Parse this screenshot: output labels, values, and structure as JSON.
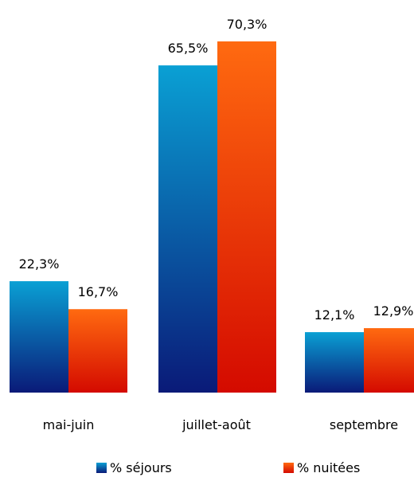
{
  "chart_data": {
    "type": "bar",
    "categories": [
      "mai-juin",
      "juillet-août",
      "septembre"
    ],
    "series": [
      {
        "name": "% séjours",
        "values": [
          22.3,
          65.5,
          12.1
        ],
        "labels": [
          "22,3%",
          "65,5%",
          "12,1%"
        ],
        "color_top": "#0aa0d4",
        "color_bottom": "#0a1a78"
      },
      {
        "name": "% nuitées",
        "values": [
          16.7,
          70.3,
          12.9
        ],
        "labels": [
          "16,7%",
          "70,3%",
          "12,9%"
        ],
        "color_top": "#ff6a10",
        "color_bottom": "#d40a00"
      }
    ],
    "title": "",
    "xlabel": "",
    "ylabel": "",
    "ylim": [
      0,
      70.3
    ],
    "grid": false,
    "legend": "bottom"
  }
}
